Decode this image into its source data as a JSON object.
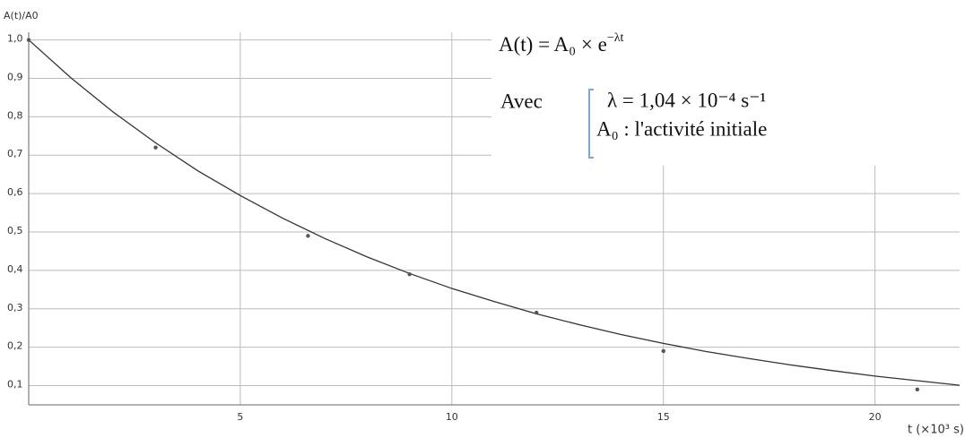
{
  "chart_data": {
    "type": "scatter",
    "y_label": "A(t)/A0",
    "x_label": "t (×10³ s)",
    "xlim": [
      0,
      22
    ],
    "ylim": [
      0.05,
      1.02
    ],
    "xticks": [
      5,
      10,
      15,
      20
    ],
    "yticks": [
      {
        "value": 0.1,
        "label": "0,1"
      },
      {
        "value": 0.2,
        "label": "0,2"
      },
      {
        "value": 0.3,
        "label": "0,3"
      },
      {
        "value": 0.4,
        "label": "0,4"
      },
      {
        "value": 0.5,
        "label": "0,5"
      },
      {
        "value": 0.6,
        "label": "0,6"
      },
      {
        "value": 0.7,
        "label": "0,7"
      },
      {
        "value": 0.8,
        "label": "0,8"
      },
      {
        "value": 0.9,
        "label": "0,9"
      },
      {
        "value": 1.0,
        "label": "1,0"
      }
    ],
    "grid": true,
    "series": [
      {
        "style": "line",
        "color": "#333333",
        "x": [
          0,
          1,
          2,
          3,
          4,
          5,
          6,
          7,
          8,
          9,
          10,
          11,
          12,
          13,
          14,
          15,
          16,
          17,
          18,
          19,
          20,
          21,
          22
        ],
        "values": [
          1,
          0.901,
          0.812,
          0.732,
          0.659,
          0.595,
          0.536,
          0.483,
          0.435,
          0.392,
          0.353,
          0.319,
          0.287,
          0.259,
          0.233,
          0.21,
          0.189,
          0.171,
          0.154,
          0.139,
          0.125,
          0.113,
          0.101
        ]
      },
      {
        "style": "markers",
        "color": "#555555",
        "x": [
          0,
          3,
          6.6,
          9,
          12,
          15,
          21
        ],
        "values": [
          1.0,
          0.72,
          0.49,
          0.39,
          0.29,
          0.19,
          0.09
        ]
      }
    ],
    "formula": {
      "base": "A(t) = A₀ × e",
      "exponent": "−λt"
    },
    "avec": "Avec",
    "lambda_line": "λ = 1,04 × 10⁻⁴ s⁻¹",
    "a0_line": "A₀ : l'activité initiale"
  }
}
